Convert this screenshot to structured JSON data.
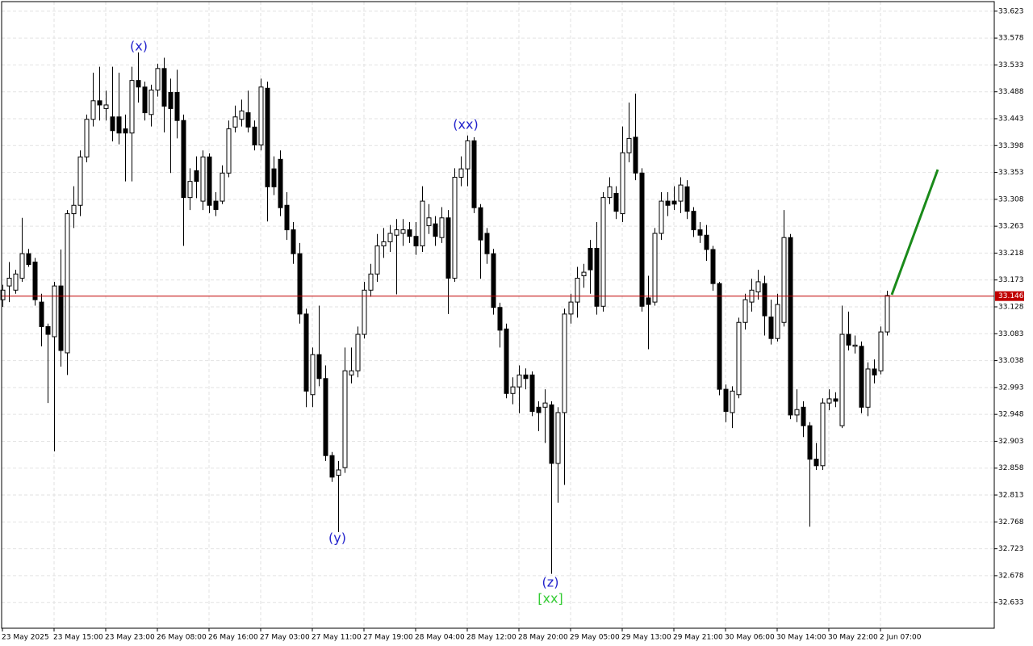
{
  "chart_data": {
    "type": "candlestick",
    "categories": [
      "23 May 2025",
      null,
      null,
      null,
      null,
      null,
      null,
      null,
      "23 May 15:00",
      null,
      null,
      null,
      null,
      null,
      null,
      null,
      "23 May 23:00",
      null,
      null,
      null,
      null,
      null,
      null,
      null,
      "26 May 08:00",
      null,
      null,
      null,
      null,
      null,
      null,
      null,
      "26 May 16:00",
      null,
      null,
      null,
      null,
      null,
      null,
      null,
      "27 May 03:00",
      null,
      null,
      null,
      null,
      null,
      null,
      null,
      "27 May 11:00",
      null,
      null,
      null,
      null,
      null,
      null,
      null,
      "27 May 19:00",
      null,
      null,
      null,
      null,
      null,
      null,
      null,
      "28 May 04:00",
      null,
      null,
      null,
      null,
      null,
      null,
      null,
      "28 May 12:00",
      null,
      null,
      null,
      null,
      null,
      null,
      null,
      "28 May 20:00",
      null,
      null,
      null,
      null,
      null,
      null,
      null,
      "29 May 05:00",
      null,
      null,
      null,
      null,
      null,
      null,
      null,
      "29 May 13:00",
      null,
      null,
      null,
      null,
      null,
      null,
      null,
      "29 May 21:00",
      null,
      null,
      null,
      null,
      null,
      null,
      null,
      "30 May 06:00",
      null,
      null,
      null,
      null,
      null,
      null,
      null,
      "30 May 14:00",
      null,
      null,
      null,
      null,
      null,
      null,
      null,
      "30 May 22:00",
      null,
      null,
      null,
      null,
      null,
      null,
      null,
      "2 Jun 07:00",
      null
    ],
    "open": [
      33.14,
      33.163,
      33.156,
      33.176,
      33.217,
      33.203,
      33.136,
      33.095,
      33.078,
      33.163,
      33.051,
      33.284,
      33.298,
      33.379,
      33.442,
      33.473,
      33.46,
      33.446,
      33.446,
      33.426,
      33.419,
      33.507,
      33.496,
      33.45,
      33.491,
      33.527,
      33.487,
      33.487,
      33.44,
      33.311,
      33.356,
      33.305,
      33.379,
      33.305,
      33.305,
      33.352,
      33.429,
      33.442,
      33.453,
      33.429,
      33.399,
      33.494,
      33.359,
      33.375,
      33.298,
      33.257,
      33.217,
      33.116,
      32.981,
      33.048,
      33.008,
      32.879,
      32.846,
      32.859,
      33.014,
      33.021,
      33.082,
      33.156,
      33.183,
      33.23,
      33.237,
      33.248,
      33.251,
      33.257,
      33.246,
      33.23,
      33.264,
      33.267,
      33.244,
      33.277,
      33.176,
      33.345,
      33.359,
      33.406,
      33.294,
      33.251,
      33.217,
      33.127,
      33.091,
      32.983,
      32.994,
      33.014,
      33.014,
      32.96,
      32.96,
      32.964,
      32.866,
      32.951,
      33.116,
      33.136,
      33.18,
      33.226,
      33.226,
      33.129,
      33.311,
      33.318,
      33.284,
      33.386,
      33.412,
      33.352,
      33.143,
      33.136,
      33.251,
      33.305,
      33.305,
      33.305,
      33.329,
      33.288,
      33.257,
      33.248,
      33.224,
      33.167,
      32.99,
      32.951,
      32.981,
      33.102,
      33.136,
      33.153,
      33.167,
      33.111,
      33.075,
      33.102,
      33.244,
      32.947,
      32.96,
      32.929,
      32.873,
      32.862,
      32.967,
      32.974,
      32.929,
      33.082,
      33.062,
      33.062,
      32.96,
      33.024,
      33.021,
      33.086
    ],
    "high": [
      33.165,
      33.203,
      33.19,
      33.277,
      33.225,
      33.21,
      33.15,
      33.1,
      33.17,
      33.224,
      33.29,
      33.33,
      33.39,
      33.45,
      33.52,
      33.53,
      33.49,
      33.53,
      33.52,
      33.45,
      33.53,
      33.554,
      33.505,
      33.5,
      33.535,
      33.545,
      33.51,
      33.525,
      33.45,
      33.36,
      33.38,
      33.39,
      33.385,
      33.32,
      33.365,
      33.44,
      33.465,
      33.475,
      33.49,
      33.44,
      33.51,
      33.505,
      33.38,
      33.39,
      33.32,
      33.27,
      33.235,
      33.125,
      33.06,
      33.13,
      33.03,
      32.885,
      32.87,
      33.06,
      33.06,
      33.095,
      33.17,
      33.2,
      33.25,
      33.26,
      33.265,
      33.275,
      33.275,
      33.27,
      33.27,
      33.33,
      33.3,
      33.28,
      33.295,
      33.29,
      33.36,
      33.38,
      33.415,
      33.412,
      33.3,
      33.26,
      33.225,
      33.135,
      33.1,
      33.01,
      33.03,
      33.025,
      33.02,
      32.97,
      32.99,
      32.97,
      32.96,
      33.125,
      33.15,
      33.195,
      33.2,
      33.24,
      33.27,
      33.32,
      33.345,
      33.33,
      33.43,
      33.47,
      33.485,
      33.36,
      33.18,
      33.26,
      33.32,
      33.32,
      33.33,
      33.345,
      33.34,
      33.295,
      33.27,
      33.265,
      33.23,
      33.17,
      32.998,
      32.995,
      33.11,
      33.15,
      33.175,
      33.19,
      33.18,
      33.14,
      33.15,
      33.29,
      33.25,
      32.99,
      32.97,
      32.935,
      32.9,
      32.975,
      32.99,
      32.985,
      33.13,
      33.12,
      33.08,
      33.07,
      33.035,
      33.04,
      33.095,
      33.155
    ],
    "low": [
      33.128,
      33.136,
      33.15,
      33.17,
      33.195,
      33.13,
      33.062,
      32.967,
      32.886,
      33.028,
      33.014,
      33.26,
      33.28,
      33.37,
      33.43,
      33.44,
      33.44,
      33.405,
      33.4,
      33.338,
      33.338,
      33.47,
      33.44,
      33.43,
      33.48,
      33.42,
      33.352,
      33.41,
      33.23,
      33.29,
      33.31,
      33.29,
      33.285,
      33.28,
      33.3,
      33.345,
      33.42,
      33.43,
      33.42,
      33.39,
      33.39,
      33.271,
      33.315,
      33.28,
      33.24,
      33.2,
      33.1,
      32.96,
      32.96,
      32.995,
      32.87,
      32.835,
      32.751,
      32.85,
      33.0,
      33.01,
      33.075,
      33.145,
      33.17,
      33.21,
      33.22,
      33.149,
      33.23,
      33.235,
      33.215,
      33.22,
      33.25,
      33.23,
      33.235,
      33.116,
      33.17,
      33.33,
      33.33,
      33.285,
      33.175,
      33.2,
      33.115,
      33.06,
      32.975,
      32.965,
      32.95,
      32.99,
      32.945,
      32.92,
      32.9,
      32.681,
      32.8,
      32.83,
      33.1,
      33.11,
      33.16,
      33.15,
      33.115,
      33.12,
      33.3,
      33.275,
      33.27,
      33.37,
      33.34,
      33.12,
      33.057,
      33.13,
      33.24,
      33.28,
      33.29,
      33.285,
      33.275,
      33.245,
      33.235,
      33.205,
      33.155,
      32.98,
      32.935,
      32.925,
      32.975,
      33.09,
      33.12,
      33.14,
      33.08,
      33.065,
      33.07,
      33.095,
      32.94,
      32.935,
      32.91,
      32.76,
      32.855,
      32.855,
      32.955,
      32.96,
      32.925,
      33.055,
      33.05,
      32.95,
      32.945,
      33.0,
      33.015,
      33.08
    ],
    "close": [
      33.156,
      33.176,
      33.183,
      33.217,
      33.199,
      33.14,
      33.095,
      33.082,
      33.163,
      33.055,
      33.284,
      33.298,
      33.379,
      33.442,
      33.473,
      33.466,
      33.466,
      33.423,
      33.419,
      33.419,
      33.507,
      33.496,
      33.453,
      33.491,
      33.527,
      33.464,
      33.46,
      33.44,
      33.311,
      33.338,
      33.338,
      33.379,
      33.298,
      33.291,
      33.352,
      33.426,
      33.446,
      33.456,
      33.429,
      33.399,
      33.496,
      33.329,
      33.329,
      33.294,
      33.257,
      33.217,
      33.116,
      32.987,
      33.048,
      33.008,
      32.879,
      32.843,
      32.855,
      33.021,
      33.021,
      33.082,
      33.156,
      33.183,
      33.23,
      33.237,
      33.251,
      33.257,
      33.257,
      33.246,
      33.23,
      33.305,
      33.277,
      33.246,
      33.277,
      33.176,
      33.345,
      33.359,
      33.406,
      33.294,
      33.24,
      33.217,
      33.127,
      33.089,
      32.983,
      32.994,
      33.014,
      33.008,
      32.953,
      32.951,
      32.967,
      32.866,
      32.951,
      33.116,
      33.136,
      33.176,
      33.186,
      33.19,
      33.129,
      33.311,
      33.329,
      33.288,
      33.386,
      33.41,
      33.352,
      33.129,
      33.132,
      33.251,
      33.305,
      33.298,
      33.3,
      33.332,
      33.288,
      33.257,
      33.248,
      33.224,
      33.167,
      32.99,
      32.953,
      32.987,
      33.102,
      33.14,
      33.156,
      33.17,
      33.113,
      33.075,
      33.132,
      33.244,
      32.947,
      32.956,
      32.929,
      32.873,
      32.862,
      32.967,
      32.974,
      32.97,
      33.082,
      33.064,
      33.064,
      32.96,
      33.024,
      33.014,
      33.086,
      33.147
    ],
    "ylim": [
      32.59,
      33.639
    ],
    "yticks": [
      33.623,
      33.578,
      33.533,
      33.488,
      33.443,
      33.398,
      33.353,
      33.308,
      33.263,
      33.218,
      33.173,
      33.128,
      33.083,
      33.038,
      32.993,
      32.948,
      32.903,
      32.858,
      32.813,
      32.768,
      32.723,
      32.678,
      32.633
    ],
    "grid": true,
    "up_color": "#ffffff",
    "down_color": "#000000",
    "price_line": {
      "value": 33.146,
      "color": "#c00000"
    },
    "annotations": [
      {
        "text": "(x)",
        "color": "#2222cc"
      },
      {
        "text": "(xx)",
        "color": "#2222cc"
      },
      {
        "text": "(y)",
        "color": "#2222cc"
      },
      {
        "text": "(z)",
        "color": "#2222cc"
      },
      {
        "text": "[xx]",
        "color": "#33cc33"
      }
    ]
  }
}
